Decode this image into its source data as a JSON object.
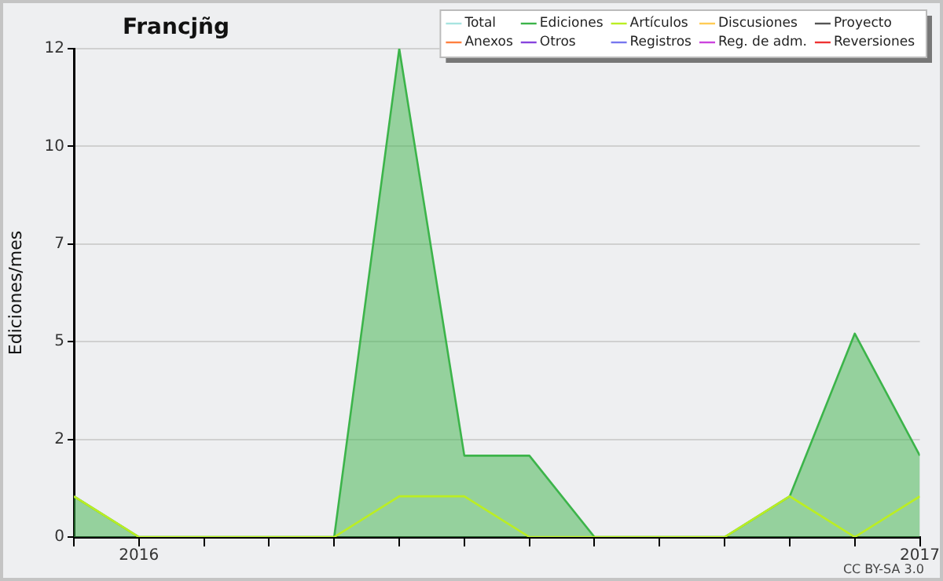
{
  "chart_data": {
    "type": "area",
    "title": "Francjñg",
    "ylabel": "Ediciones/mes",
    "x": [
      "2015-12",
      "2016-01",
      "2016-02",
      "2016-03",
      "2016-04",
      "2016-05",
      "2016-06",
      "2016-07",
      "2016-08",
      "2016-09",
      "2016-10",
      "2016-11",
      "2016-12",
      "2017-01"
    ],
    "xlim": [
      "2015-12",
      "2017-01"
    ],
    "xticks": [
      {
        "value": "2015-12",
        "label": null
      },
      {
        "value": "2016-01",
        "label": "2016"
      },
      {
        "value": "2016-02",
        "label": null
      },
      {
        "value": "2016-03",
        "label": null
      },
      {
        "value": "2016-04",
        "label": null
      },
      {
        "value": "2016-05",
        "label": null
      },
      {
        "value": "2016-06",
        "label": null
      },
      {
        "value": "2016-07",
        "label": null
      },
      {
        "value": "2016-08",
        "label": null
      },
      {
        "value": "2016-09",
        "label": null
      },
      {
        "value": "2016-10",
        "label": null
      },
      {
        "value": "2016-11",
        "label": null
      },
      {
        "value": "2016-12",
        "label": null
      },
      {
        "value": "2017-01",
        "label": "2017"
      }
    ],
    "ylim": [
      0,
      12
    ],
    "yticks": [
      0,
      {
        "value": 2.4,
        "label": "2"
      },
      {
        "value": 4.8,
        "label": "5"
      },
      {
        "value": 7.2,
        "label": "7"
      },
      {
        "value": 9.6,
        "label": "10"
      },
      12
    ],
    "series": [
      {
        "name": "Total",
        "color": "#a8e4e0",
        "type": "line",
        "values": [
          null,
          null,
          null,
          null,
          null,
          null,
          null,
          null,
          null,
          null,
          null,
          null,
          null,
          null
        ]
      },
      {
        "name": "Ediciones",
        "color": "#3cb44a",
        "values": [
          1,
          0,
          0,
          0,
          0,
          12,
          2,
          2,
          0,
          0,
          0,
          1,
          5,
          2
        ]
      },
      {
        "name": "Artículos",
        "color": "#bbee22",
        "type": "line",
        "values": [
          1,
          0,
          0,
          0,
          0,
          1,
          1,
          0,
          0,
          0,
          0,
          1,
          0,
          1
        ]
      },
      {
        "name": "Discusiones",
        "color": "#ffcc55",
        "type": "line",
        "values": [
          null,
          null,
          null,
          null,
          null,
          null,
          null,
          null,
          null,
          null,
          null,
          null,
          null,
          null
        ]
      },
      {
        "name": "Proyecto",
        "color": "#555555",
        "type": "line",
        "values": [
          null,
          null,
          null,
          null,
          null,
          null,
          null,
          null,
          null,
          null,
          null,
          null,
          null,
          null
        ]
      },
      {
        "name": "Anexos",
        "color": "#ff8040",
        "type": "line",
        "values": [
          null,
          null,
          null,
          null,
          null,
          null,
          null,
          null,
          null,
          null,
          null,
          null,
          null,
          null
        ]
      },
      {
        "name": "Otros",
        "color": "#8844dd",
        "type": "line",
        "values": [
          null,
          null,
          null,
          null,
          null,
          null,
          null,
          null,
          null,
          null,
          null,
          null,
          null,
          null
        ]
      },
      {
        "name": "Registros",
        "color": "#7777ee",
        "type": "line",
        "values": [
          null,
          null,
          null,
          null,
          null,
          null,
          null,
          null,
          null,
          null,
          null,
          null,
          null,
          null
        ]
      },
      {
        "name": "Reg. de adm.",
        "color": "#cc44dd",
        "type": "line",
        "values": [
          null,
          null,
          null,
          null,
          null,
          null,
          null,
          null,
          null,
          null,
          null,
          null,
          null,
          null
        ]
      },
      {
        "name": "Reversiones",
        "color": "#ee3333",
        "type": "line",
        "values": [
          null,
          null,
          null,
          null,
          null,
          null,
          null,
          null,
          null,
          null,
          null,
          null,
          null,
          null
        ]
      }
    ],
    "grid": "y",
    "legend": "top right",
    "marker": "none",
    "line_style": "solid",
    "annotations": [
      "CC BY-SA 3.0"
    ]
  }
}
